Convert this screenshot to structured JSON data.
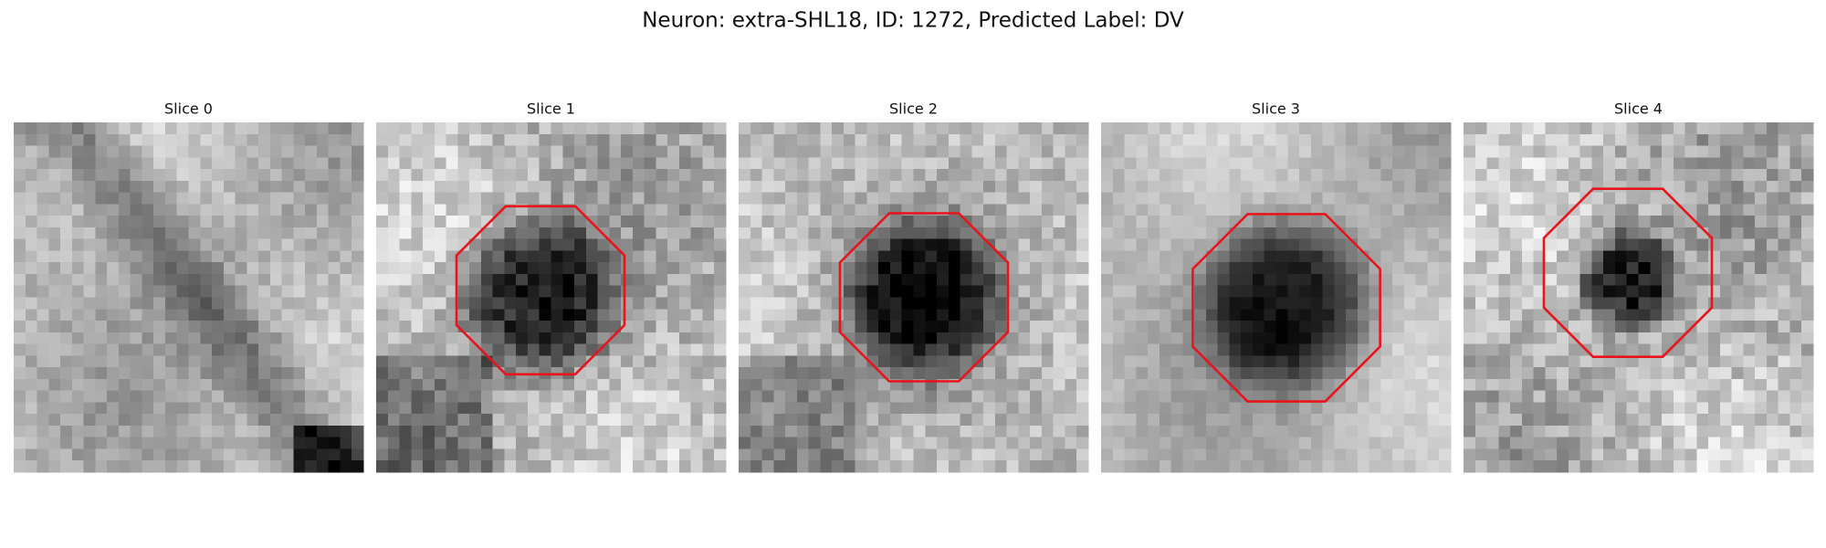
{
  "title": "Neuron: extra-SHL18, ID: 1272, Predicted Label: DV",
  "panels": [
    {
      "title": "Slice 0"
    },
    {
      "title": "Slice 1"
    },
    {
      "title": "Slice 2"
    },
    {
      "title": "Slice 3"
    },
    {
      "title": "Slice 4"
    }
  ]
}
